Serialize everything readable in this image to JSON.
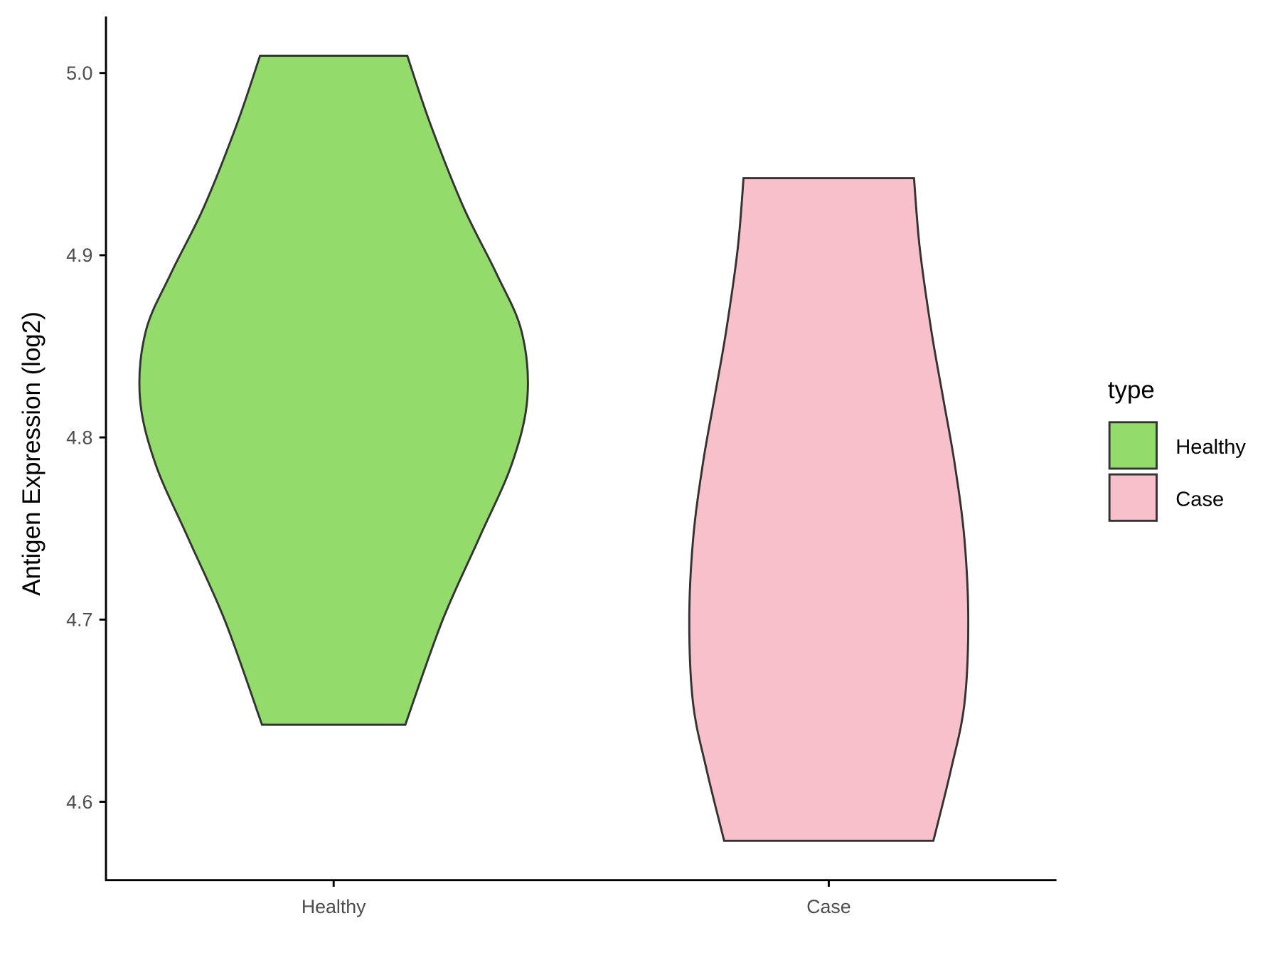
{
  "chart_data": {
    "type": "violin",
    "ylabel": "Antigen Expression (log2)",
    "categories": [
      "Healthy",
      "Case"
    ],
    "legend_title": "type",
    "legend_position": "right",
    "ylim": [
      4.557,
      5.031
    ],
    "yticks": [
      4.6,
      4.7,
      4.8,
      4.9,
      {
        "value": 5,
        "label": "5.0"
      }
    ],
    "series": [
      {
        "name": "Healthy",
        "color": "#93dc6b",
        "values": [
          5.0095,
          4.9718,
          4.9264,
          4.89,
          4.8582,
          4.8218,
          4.7855,
          4.7445,
          4.6991,
          4.6423
        ],
        "widths": [
          0.38,
          0.5,
          0.67,
          0.84,
          0.97,
          1.0,
          0.92,
          0.75,
          0.56,
          0.37
        ]
      },
      {
        "name": "Case",
        "color": "#f7c0cb",
        "values": [
          4.9423,
          4.9036,
          4.8582,
          4.8218,
          4.7855,
          4.7445,
          4.6991,
          4.6536,
          4.6173,
          4.5786
        ],
        "widths": [
          0.44,
          0.47,
          0.53,
          0.59,
          0.65,
          0.7,
          0.72,
          0.7,
          0.63,
          0.54
        ]
      }
    ]
  }
}
